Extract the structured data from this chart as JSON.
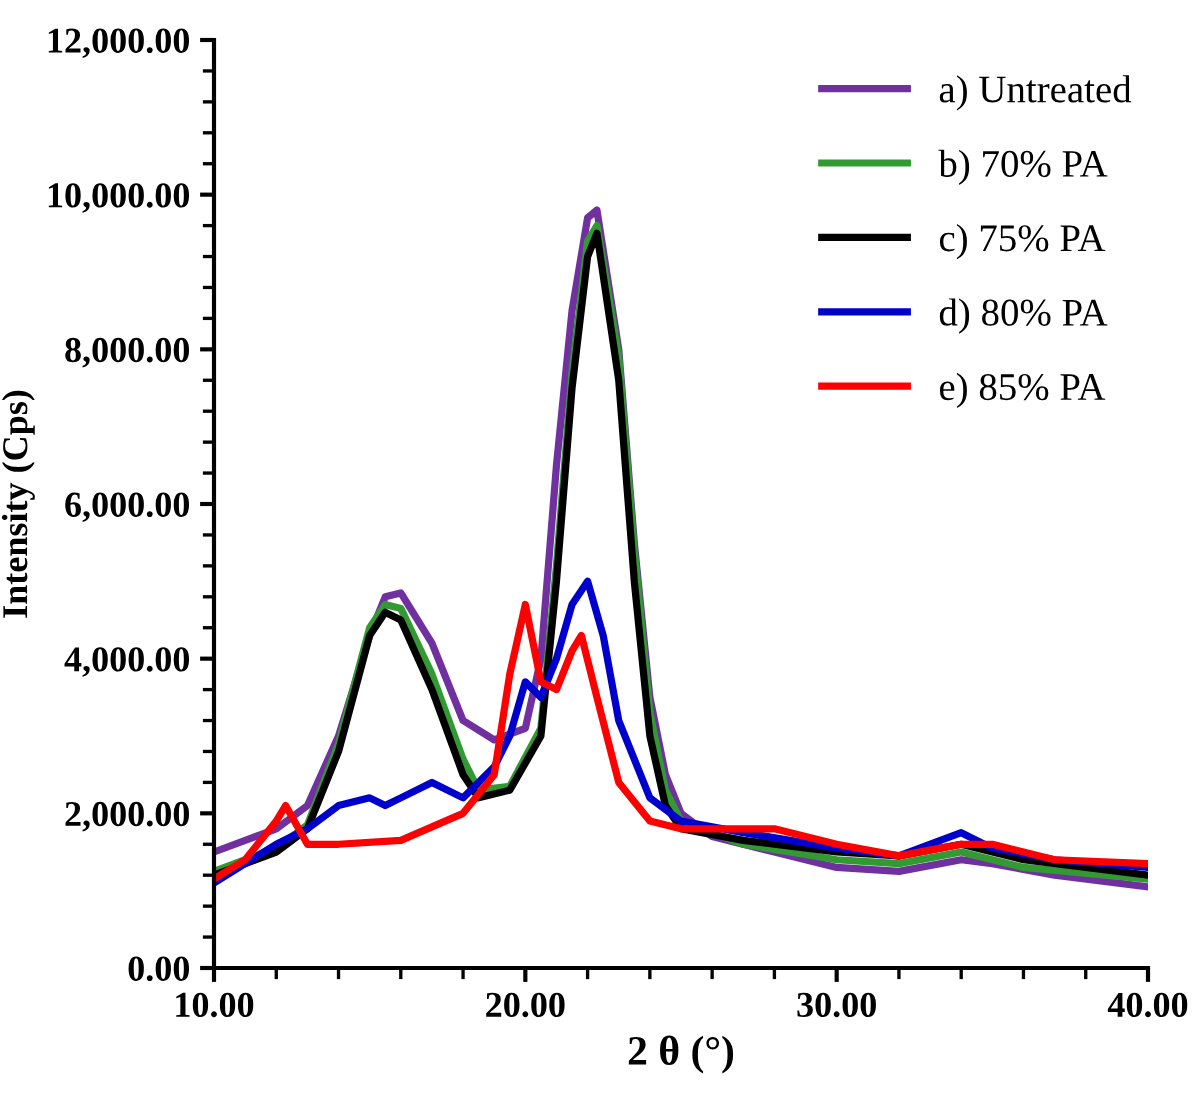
{
  "chart_data": {
    "type": "line",
    "xlabel": "2 θ (°)",
    "ylabel": "Intensity (Cps)",
    "xlim": [
      10,
      40
    ],
    "xticks": [
      {
        "value": 10,
        "label": "10.00"
      },
      {
        "value": 20,
        "label": "20.00"
      },
      {
        "value": 30,
        "label": "30.00"
      },
      {
        "value": 40,
        "label": "40.00"
      }
    ],
    "ylim": [
      0,
      12000
    ],
    "yticks": [
      {
        "value": 0,
        "label": "0.00"
      },
      {
        "value": 2000,
        "label": "2,000.00"
      },
      {
        "value": 4000,
        "label": "4,000.00"
      },
      {
        "value": 6000,
        "label": "6,000.00"
      },
      {
        "value": 8000,
        "label": "8,000.00"
      },
      {
        "value": 10000,
        "label": "10,000.00"
      },
      {
        "value": 12000,
        "label": "12,000.00"
      }
    ],
    "grid": false,
    "legend": "top right",
    "marker": "none",
    "line_style": "solid",
    "series": [
      {
        "name": "a) Untreated",
        "color": "#7030a0",
        "x": [
          10,
          12,
          13,
          14,
          15,
          15.5,
          16,
          17,
          18,
          19,
          20,
          20.5,
          21,
          21.5,
          22,
          22.3,
          23,
          23.5,
          24,
          24.5,
          25,
          26,
          28,
          30,
          32,
          34,
          35,
          37,
          40
        ],
        "values": [
          1500,
          1800,
          2100,
          3000,
          4300,
          4800,
          4850,
          4200,
          3200,
          2950,
          3100,
          4000,
          6500,
          8500,
          9700,
          9800,
          8000,
          5500,
          3500,
          2500,
          2000,
          1700,
          1500,
          1300,
          1250,
          1400,
          1350,
          1200,
          1050
        ]
      },
      {
        "name": "b) 70% PA",
        "color": "#339933",
        "x": [
          10,
          12,
          13,
          14,
          15,
          15.5,
          16,
          17,
          18,
          18.5,
          19.5,
          20.5,
          21,
          21.5,
          22,
          22.3,
          23,
          23.5,
          24,
          24.5,
          25,
          27,
          30,
          32,
          34,
          36,
          40
        ],
        "values": [
          1250,
          1550,
          1850,
          2900,
          4400,
          4700,
          4650,
          3800,
          2700,
          2300,
          2350,
          3100,
          5200,
          7700,
          9400,
          9600,
          7900,
          5400,
          3300,
          2300,
          1900,
          1600,
          1400,
          1350,
          1500,
          1300,
          1150
        ]
      },
      {
        "name": "c) 75% PA",
        "color": "#000000",
        "x": [
          10,
          12,
          13,
          14,
          15,
          15.5,
          16,
          17,
          18,
          18.5,
          19.5,
          20.5,
          21,
          21.5,
          22,
          22.3,
          23,
          23.5,
          24,
          24.5,
          25,
          27,
          30,
          32,
          34,
          36,
          40
        ],
        "values": [
          1200,
          1500,
          1800,
          2800,
          4300,
          4600,
          4500,
          3600,
          2500,
          2200,
          2300,
          3000,
          5000,
          7500,
          9200,
          9500,
          7600,
          5000,
          3000,
          2100,
          1800,
          1650,
          1500,
          1450,
          1600,
          1400,
          1200
        ]
      },
      {
        "name": "d) 80% PA",
        "color": "#0000cc",
        "x": [
          10,
          12,
          13,
          14,
          15,
          15.5,
          16,
          17,
          18,
          19,
          19.5,
          20,
          20.5,
          21,
          21.5,
          22,
          22.5,
          23,
          24,
          25,
          27,
          30,
          32,
          34,
          35,
          37,
          40
        ],
        "values": [
          1100,
          1600,
          1800,
          2100,
          2200,
          2100,
          2200,
          2400,
          2200,
          2600,
          3000,
          3700,
          3500,
          4000,
          4700,
          5000,
          4300,
          3200,
          2200,
          1900,
          1750,
          1550,
          1450,
          1750,
          1550,
          1400,
          1300
        ]
      },
      {
        "name": "e) 85% PA",
        "color": "#ff0000",
        "x": [
          10,
          11,
          12,
          12.3,
          13,
          14,
          16,
          18,
          19,
          19.5,
          20,
          20.5,
          21,
          21.5,
          21.8,
          22.3,
          23,
          24,
          25,
          28,
          30,
          32,
          34,
          35,
          37,
          40
        ],
        "values": [
          1150,
          1400,
          1900,
          2100,
          1600,
          1600,
          1650,
          2000,
          2500,
          3800,
          4700,
          3700,
          3600,
          4100,
          4300,
          3500,
          2400,
          1900,
          1800,
          1800,
          1600,
          1450,
          1600,
          1600,
          1400,
          1350
        ]
      }
    ]
  }
}
